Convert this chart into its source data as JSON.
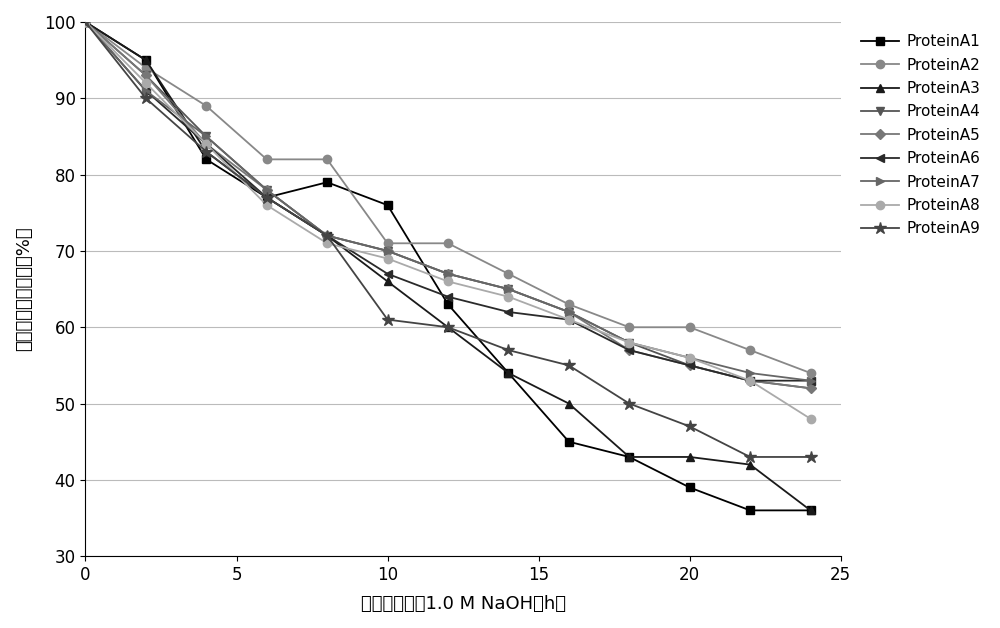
{
  "xlabel": "碱处理时间（1.0 M NaOH，h）",
  "ylabel": "剩余动态结合载量（%）",
  "xlim": [
    0,
    25
  ],
  "ylim": [
    30,
    100
  ],
  "xticks": [
    0,
    5,
    10,
    15,
    20,
    25
  ],
  "yticks": [
    30,
    40,
    50,
    60,
    70,
    80,
    90,
    100
  ],
  "series": [
    {
      "name": "ProteinA1",
      "marker": "s",
      "color": "#000000",
      "x": [
        0,
        2,
        4,
        6,
        8,
        10,
        12,
        14,
        16,
        18,
        20,
        22,
        24
      ],
      "y": [
        100,
        95,
        82,
        77,
        79,
        76,
        63,
        54,
        45,
        43,
        39,
        36,
        36
      ]
    },
    {
      "name": "ProteinA2",
      "marker": "o",
      "color": "#888888",
      "x": [
        0,
        2,
        4,
        6,
        8,
        10,
        12,
        14,
        16,
        18,
        20,
        22,
        24
      ],
      "y": [
        100,
        94,
        89,
        82,
        82,
        71,
        71,
        67,
        63,
        60,
        60,
        57,
        54
      ]
    },
    {
      "name": "ProteinA3",
      "marker": "^",
      "color": "#1a1a1a",
      "x": [
        0,
        2,
        4,
        6,
        8,
        10,
        12,
        14,
        16,
        18,
        20,
        22,
        24
      ],
      "y": [
        100,
        95,
        83,
        77,
        72,
        66,
        60,
        54,
        50,
        43,
        43,
        42,
        36
      ]
    },
    {
      "name": "ProteinA4",
      "marker": "v",
      "color": "#555555",
      "x": [
        0,
        2,
        4,
        6,
        8,
        10,
        12,
        14,
        16,
        18,
        20,
        22,
        24
      ],
      "y": [
        100,
        93,
        85,
        78,
        72,
        70,
        67,
        65,
        62,
        58,
        55,
        53,
        52
      ]
    },
    {
      "name": "ProteinA5",
      "marker": "D",
      "color": "#777777",
      "x": [
        0,
        2,
        4,
        6,
        8,
        10,
        12,
        14,
        16,
        18,
        20,
        22,
        24
      ],
      "y": [
        100,
        93,
        84,
        78,
        72,
        70,
        67,
        65,
        62,
        57,
        55,
        53,
        52
      ]
    },
    {
      "name": "ProteinA6",
      "marker": "<",
      "color": "#2a2a2a",
      "x": [
        0,
        2,
        4,
        6,
        8,
        10,
        12,
        14,
        16,
        18,
        20,
        22,
        24
      ],
      "y": [
        100,
        91,
        84,
        77,
        72,
        67,
        64,
        62,
        61,
        57,
        55,
        53,
        53
      ]
    },
    {
      "name": "ProteinA7",
      "marker": ">",
      "color": "#666666",
      "x": [
        0,
        2,
        4,
        6,
        8,
        10,
        12,
        14,
        16,
        18,
        20,
        22,
        24
      ],
      "y": [
        100,
        91,
        85,
        78,
        72,
        70,
        67,
        65,
        62,
        58,
        56,
        54,
        53
      ]
    },
    {
      "name": "ProteinA8",
      "marker": "o",
      "color": "#aaaaaa",
      "x": [
        0,
        2,
        4,
        6,
        8,
        10,
        12,
        14,
        16,
        18,
        20,
        22,
        24
      ],
      "y": [
        100,
        92,
        84,
        76,
        71,
        69,
        66,
        64,
        61,
        58,
        56,
        53,
        48
      ]
    },
    {
      "name": "ProteinA9",
      "marker": "*",
      "color": "#444444",
      "x": [
        0,
        2,
        4,
        6,
        8,
        10,
        12,
        14,
        16,
        18,
        20,
        22,
        24
      ],
      "y": [
        100,
        90,
        83,
        77,
        72,
        61,
        60,
        57,
        55,
        50,
        47,
        43,
        43
      ]
    }
  ],
  "background_color": "#ffffff",
  "grid_color": "#bbbbbb",
  "line_width": 1.3,
  "marker_size": 6,
  "star_marker_size": 9,
  "diamond_marker_size": 5,
  "legend_fontsize": 11,
  "axis_fontsize": 13,
  "tick_fontsize": 12
}
